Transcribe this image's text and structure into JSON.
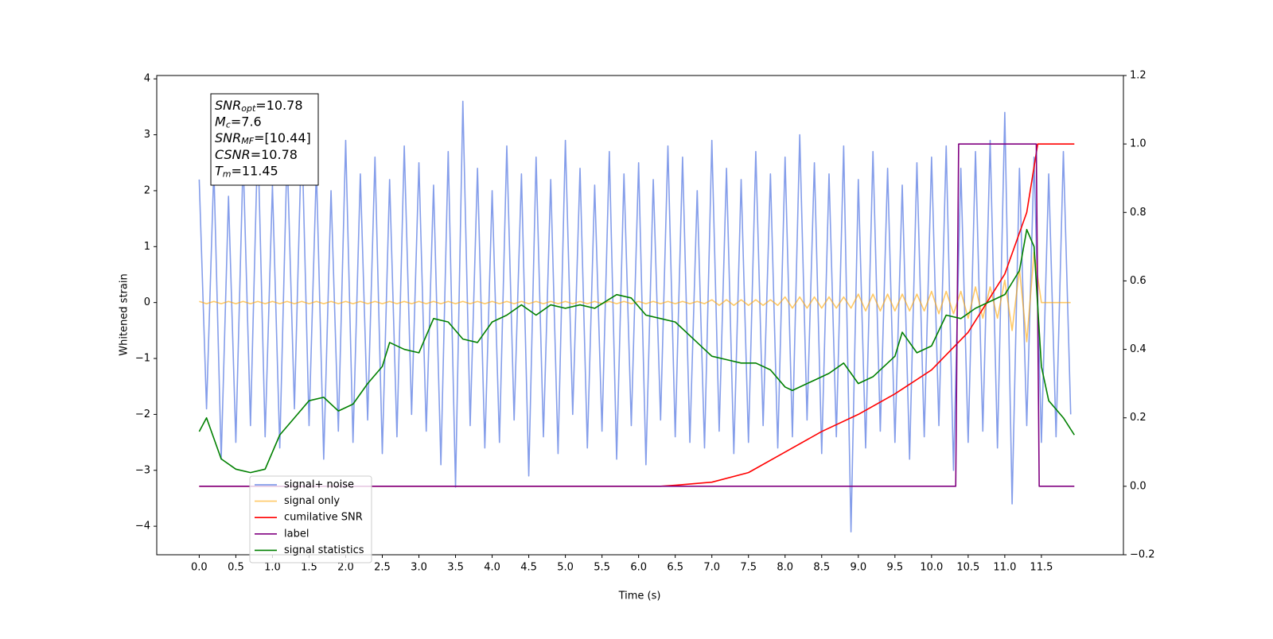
{
  "chart_data": {
    "type": "line",
    "xlabel": "Time (s)",
    "ylabel": "Whitened strain",
    "xlim": [
      -0.58,
      12.62
    ],
    "ylim": [
      -4.51,
      4.06
    ],
    "y2lim": [
      -0.2,
      1.2
    ],
    "xticks": [
      {
        "value": 0,
        "label": "0.0"
      },
      0.5,
      {
        "value": 1,
        "label": "1.0"
      },
      1.5,
      {
        "value": 2,
        "label": "2.0"
      },
      2.5,
      {
        "value": 3,
        "label": "3.0"
      },
      3.5,
      {
        "value": 4,
        "label": "4.0"
      },
      4.5,
      {
        "value": 5,
        "label": "5.0"
      },
      5.5,
      {
        "value": 6,
        "label": "6.0"
      },
      6.5,
      {
        "value": 7,
        "label": "7.0"
      },
      7.5,
      {
        "value": 8,
        "label": "8.0"
      },
      8.5,
      {
        "value": 9,
        "label": "9.0"
      },
      9.5,
      {
        "value": 10,
        "label": "10.0"
      },
      10.5,
      {
        "value": 11,
        "label": "11.0"
      },
      11.5
    ],
    "yticks": [
      {
        "value": -4,
        "label": "−4"
      },
      {
        "value": -3,
        "label": "−3"
      },
      {
        "value": -2,
        "label": "−2"
      },
      {
        "value": -1,
        "label": "−1"
      },
      0,
      1,
      2,
      3,
      4
    ],
    "y2ticks": [
      {
        "value": -0.2,
        "label": "−0.2"
      },
      {
        "value": 0,
        "label": "0.0"
      },
      0.2,
      0.4,
      0.6,
      0.8,
      {
        "value": 1,
        "label": "1.0"
      },
      1.2
    ],
    "legend": "lower left",
    "annotation": [
      {
        "text": "SNR",
        "sub": "opt",
        "value": "=10.78"
      },
      {
        "text": "M",
        "sub": "c",
        "value": "=7.6"
      },
      {
        "text": "SNR",
        "sub": "MF",
        "value": "=[10.44]"
      },
      {
        "text": "CSNR",
        "value": "=10.78"
      },
      {
        "text": "T",
        "sub": "m",
        "value": "=11.45"
      }
    ],
    "x": [
      0,
      0.1,
      0.2,
      0.3,
      0.4,
      0.5,
      0.6,
      0.7,
      0.8,
      0.9,
      1,
      1.1,
      1.2,
      1.3,
      1.4,
      1.5,
      1.6,
      1.7,
      1.8,
      1.9,
      2,
      2.1,
      2.2,
      2.3,
      2.4,
      2.5,
      2.6,
      2.7,
      2.8,
      2.9,
      3,
      3.1,
      3.2,
      3.3,
      3.4,
      3.5,
      3.6,
      3.7,
      3.8,
      3.9,
      4,
      4.1,
      4.2,
      4.3,
      4.4,
      4.5,
      4.6,
      4.7,
      4.8,
      4.9,
      5,
      5.1,
      5.2,
      5.3,
      5.4,
      5.5,
      5.6,
      5.7,
      5.8,
      5.9,
      6,
      6.1,
      6.2,
      6.3,
      6.4,
      6.5,
      6.6,
      6.7,
      6.8,
      6.9,
      7,
      7.1,
      7.2,
      7.3,
      7.4,
      7.5,
      7.6,
      7.7,
      7.8,
      7.9,
      8,
      8.1,
      8.2,
      8.3,
      8.4,
      8.5,
      8.6,
      8.7,
      8.8,
      8.9,
      9,
      9.1,
      9.2,
      9.3,
      9.4,
      9.5,
      9.6,
      9.7,
      9.8,
      9.9,
      10,
      10.1,
      10.2,
      10.3,
      10.4,
      10.5,
      10.6,
      10.7,
      10.8,
      10.9,
      11,
      11.1,
      11.2,
      11.3,
      11.4,
      11.5,
      11.6,
      11.7,
      11.8,
      11.9
    ],
    "series": [
      {
        "name": "signal+ noise",
        "color": "#6f8ce6",
        "values": [
          2.2,
          -1.9,
          2.4,
          -2.8,
          1.9,
          -2.5,
          2.6,
          -2.2,
          3.0,
          -2.4,
          2.1,
          -2.6,
          2.7,
          -1.9,
          3.1,
          -2.2,
          2.4,
          -2.8,
          2.0,
          -2.3,
          2.9,
          -2.5,
          2.3,
          -2.1,
          2.6,
          -2.7,
          2.2,
          -2.4,
          2.8,
          -2.0,
          2.5,
          -2.3,
          2.1,
          -2.9,
          2.7,
          -3.3,
          3.6,
          -2.2,
          2.4,
          -2.6,
          2.0,
          -2.5,
          2.8,
          -2.1,
          2.3,
          -3.1,
          2.6,
          -2.4,
          2.2,
          -2.7,
          2.9,
          -2.0,
          2.4,
          -2.6,
          2.1,
          -2.3,
          2.7,
          -2.8,
          2.3,
          -2.2,
          2.5,
          -2.9,
          2.2,
          -2.1,
          2.8,
          -2.4,
          2.6,
          -2.5,
          2.0,
          -2.6,
          2.9,
          -2.3,
          2.4,
          -2.7,
          2.2,
          -2.5,
          2.7,
          -2.2,
          2.3,
          -2.6,
          2.6,
          -2.4,
          3.0,
          -2.1,
          2.5,
          -2.7,
          2.3,
          -2.4,
          2.8,
          -4.1,
          2.2,
          -2.6,
          2.7,
          -2.3,
          2.4,
          -2.5,
          2.1,
          -2.8,
          2.5,
          -2.4,
          2.6,
          -2.2,
          2.8,
          -3.0,
          2.4,
          -2.5,
          2.7,
          -2.3,
          2.9,
          -2.6,
          3.4,
          -3.6,
          2.4,
          -2.2,
          2.6,
          -2.5,
          2.3,
          -2.4,
          2.7,
          -2.0
        ]
      },
      {
        "name": "signal only",
        "color": "orange",
        "values": [
          0.02,
          -0.02,
          0.02,
          -0.02,
          0.02,
          -0.02,
          0.02,
          -0.02,
          0.02,
          -0.02,
          0.02,
          -0.02,
          0.02,
          -0.02,
          0.02,
          -0.02,
          0.02,
          -0.02,
          0.02,
          -0.02,
          0.02,
          -0.02,
          0.02,
          -0.02,
          0.02,
          -0.02,
          0.02,
          -0.02,
          0.02,
          -0.02,
          0.02,
          -0.02,
          0.02,
          -0.02,
          0.02,
          -0.02,
          0.02,
          -0.02,
          0.02,
          -0.02,
          0.02,
          -0.02,
          0.02,
          -0.02,
          0.02,
          -0.02,
          0.02,
          -0.02,
          0.02,
          -0.02,
          0.02,
          -0.02,
          0.02,
          -0.02,
          0.02,
          -0.02,
          0.02,
          -0.02,
          0.02,
          -0.02,
          0.02,
          -0.02,
          0.02,
          -0.02,
          0.02,
          -0.02,
          0.02,
          -0.02,
          0.02,
          -0.02,
          0.05,
          -0.05,
          0.05,
          -0.05,
          0.05,
          -0.05,
          0.05,
          -0.05,
          0.05,
          -0.05,
          0.1,
          -0.1,
          0.1,
          -0.1,
          0.1,
          -0.1,
          0.1,
          -0.1,
          0.1,
          -0.1,
          0.15,
          -0.15,
          0.15,
          -0.15,
          0.15,
          -0.15,
          0.15,
          -0.15,
          0.15,
          -0.15,
          0.2,
          -0.2,
          0.2,
          -0.2,
          0.2,
          -0.28,
          0.28,
          -0.28,
          0.28,
          -0.28,
          0.4,
          -0.5,
          0.6,
          -0.7,
          0.9,
          0,
          0,
          0,
          0,
          0
        ]
      },
      {
        "name": "cumilative SNR",
        "color": "red",
        "axis": "y2",
        "x": [
          0,
          6.3,
          6.5,
          7.0,
          7.5,
          8.0,
          8.5,
          9.0,
          9.5,
          10.0,
          10.5,
          11.0,
          11.3,
          11.45,
          11.95
        ],
        "values": [
          0,
          0,
          0.003,
          0.012,
          0.04,
          0.1,
          0.16,
          0.21,
          0.27,
          0.34,
          0.45,
          0.62,
          0.8,
          1.0,
          1.0
        ]
      },
      {
        "name": "label",
        "color": "purple",
        "axis": "y2",
        "x": [
          0,
          10.33,
          10.37,
          11.43,
          11.47,
          11.95
        ],
        "values": [
          0,
          0,
          1,
          1,
          0,
          0
        ]
      },
      {
        "name": "signal statistics",
        "color": "green",
        "axis": "y2",
        "x": [
          0,
          0.1,
          0.3,
          0.5,
          0.7,
          0.9,
          1.1,
          1.3,
          1.5,
          1.7,
          1.9,
          2.1,
          2.3,
          2.5,
          2.6,
          2.8,
          3.0,
          3.2,
          3.4,
          3.6,
          3.8,
          4.0,
          4.2,
          4.4,
          4.6,
          4.8,
          5.0,
          5.2,
          5.4,
          5.7,
          5.9,
          6.1,
          6.3,
          6.5,
          6.7,
          7.0,
          7.2,
          7.4,
          7.6,
          7.8,
          8.0,
          8.1,
          8.4,
          8.6,
          8.8,
          9.0,
          9.2,
          9.5,
          9.6,
          9.8,
          10.0,
          10.2,
          10.4,
          10.6,
          10.8,
          11.0,
          11.2,
          11.3,
          11.4,
          11.5,
          11.6,
          11.8,
          11.95
        ],
        "values": [
          0.16,
          0.2,
          0.08,
          0.05,
          0.04,
          0.05,
          0.15,
          0.2,
          0.25,
          0.26,
          0.22,
          0.24,
          0.3,
          0.35,
          0.42,
          0.4,
          0.39,
          0.49,
          0.48,
          0.43,
          0.42,
          0.48,
          0.5,
          0.53,
          0.5,
          0.53,
          0.52,
          0.53,
          0.52,
          0.56,
          0.55,
          0.5,
          0.49,
          0.48,
          0.44,
          0.38,
          0.37,
          0.36,
          0.36,
          0.34,
          0.29,
          0.28,
          0.31,
          0.33,
          0.36,
          0.3,
          0.32,
          0.38,
          0.45,
          0.39,
          0.41,
          0.5,
          0.49,
          0.52,
          0.54,
          0.56,
          0.63,
          0.75,
          0.7,
          0.35,
          0.25,
          0.2,
          0.15
        ]
      }
    ]
  }
}
